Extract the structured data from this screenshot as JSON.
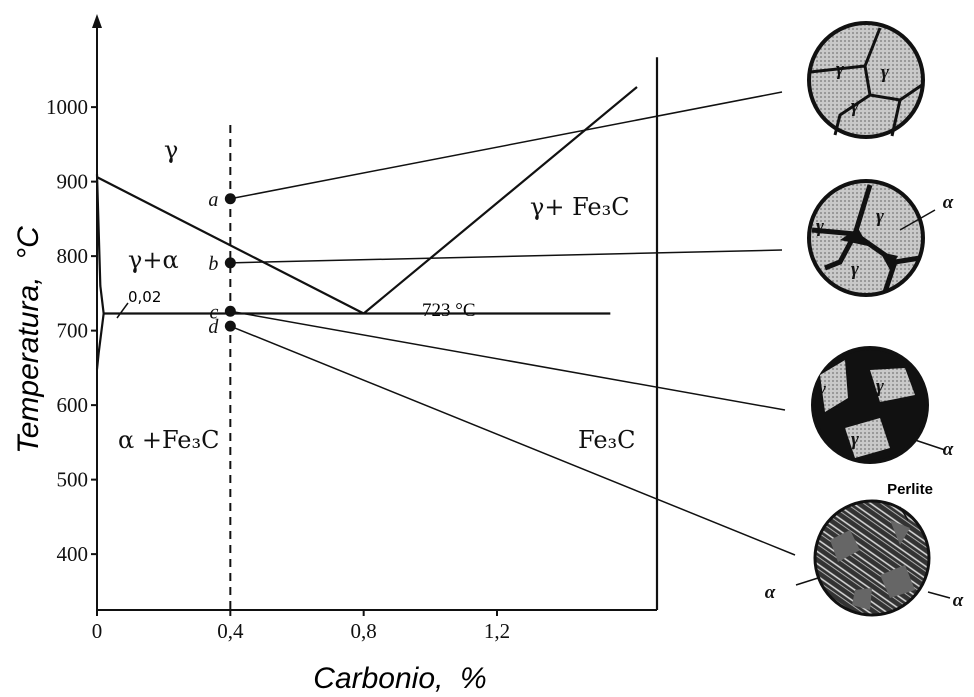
{
  "chart_data": {
    "type": "phase",
    "xlabel": "Carbonio,  %",
    "ylabel": "Temperatura,  °C",
    "xlim": [
      0,
      1.68
    ],
    "ylim": [
      325,
      1125
    ],
    "xticks": [
      0,
      {
        "value": 0.4,
        "label": "0,4"
      },
      {
        "value": 0.8,
        "label": "0,8"
      },
      {
        "value": 1.2,
        "label": "1,2"
      }
    ],
    "yticks": [
      400,
      500,
      600,
      700,
      800,
      900,
      1000
    ],
    "boundaries": [
      {
        "x": [
          0,
          0.8
        ],
        "y": [
          906,
          723
        ]
      },
      {
        "x": [
          0.8,
          1.62
        ],
        "y": [
          723,
          1027
        ]
      },
      {
        "x": [
          0.02,
          1.54
        ],
        "y": [
          723,
          723
        ]
      },
      {
        "x": [
          0,
          0.01,
          0.02
        ],
        "y": [
          910,
          760,
          723
        ]
      },
      {
        "x": [
          0.02,
          0.005,
          0
        ],
        "y": [
          723,
          670,
          648
        ]
      },
      {
        "x": [
          1.68,
          1.68
        ],
        "y": [
          325,
          1067
        ]
      }
    ],
    "section_x": 0.4,
    "points": {
      "labels": [
        "a",
        "b",
        "c",
        "d"
      ],
      "x": [
        0.4,
        0.4,
        0.4,
        0.4
      ],
      "y": [
        877,
        791,
        726,
        706
      ]
    },
    "annotations": [
      "γ",
      "γ+α",
      "γ+ Fe₃C",
      "α +Fe₃C",
      "Fe₃C",
      "723 °C",
      "0,02"
    ],
    "micrographs": [
      [
        "γ",
        "γ",
        "γ"
      ],
      [
        "γ",
        "γ",
        "γ",
        "α"
      ],
      [
        "γ",
        "γ",
        "γ",
        "α"
      ],
      [
        "Perlite",
        "α",
        "α"
      ]
    ]
  }
}
